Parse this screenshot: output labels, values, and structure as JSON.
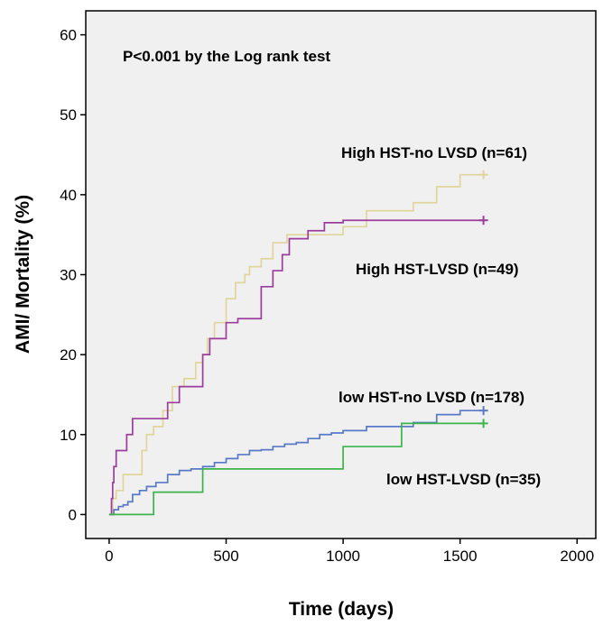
{
  "chart_data": {
    "type": "line",
    "step": true,
    "xlabel": "Time (days)",
    "ylabel": "AMI/ Mortality (%)",
    "xlim": [
      -100,
      2080
    ],
    "ylim": [
      -3,
      63
    ],
    "xticks": [
      0,
      500,
      1000,
      1500,
      2000
    ],
    "yticks": [
      0,
      10,
      20,
      30,
      40,
      50,
      60
    ],
    "grid": false,
    "plot_background": "#f0f0f0",
    "annotation": "P<0.001 by the Log rank test",
    "series": [
      {
        "name": "High HST-no LVSD (n=61)",
        "color": "#e0d59a",
        "x": [
          0,
          15,
          30,
          60,
          100,
          140,
          160,
          190,
          230,
          270,
          320,
          370,
          400,
          420,
          450,
          500,
          540,
          580,
          600,
          650,
          700,
          760,
          800,
          900,
          1000,
          1100,
          1300,
          1400,
          1500,
          1600
        ],
        "y": [
          0,
          2,
          3,
          5,
          5,
          8,
          10,
          11,
          13,
          16,
          17,
          19,
          20,
          22,
          24,
          27,
          29,
          30,
          31,
          32,
          34,
          35,
          35,
          35,
          36,
          38,
          39,
          41,
          42.5,
          42.5
        ]
      },
      {
        "name": "High HST-LVSD (n=49)",
        "color": "#9c3d9e",
        "x": [
          0,
          10,
          15,
          20,
          30,
          50,
          75,
          100,
          130,
          200,
          250,
          300,
          350,
          400,
          430,
          450,
          500,
          550,
          580,
          600,
          650,
          700,
          740,
          770,
          850,
          920,
          1000,
          1300,
          1600
        ],
        "y": [
          0,
          2,
          4,
          6,
          8,
          8,
          10,
          12,
          12,
          12,
          14,
          16,
          16,
          20,
          22,
          22,
          24,
          24.5,
          24.5,
          24.5,
          28.5,
          30.5,
          32.5,
          34.5,
          35.5,
          36.5,
          36.8,
          36.8,
          36.8
        ]
      },
      {
        "name": "low HST-no LVSD (n=178)",
        "color": "#5878c8",
        "x": [
          0,
          20,
          40,
          60,
          80,
          100,
          130,
          160,
          200,
          250,
          300,
          350,
          400,
          450,
          500,
          550,
          600,
          650,
          700,
          750,
          800,
          850,
          900,
          950,
          1000,
          1100,
          1200,
          1300,
          1400,
          1500,
          1600
        ],
        "y": [
          0,
          0.6,
          1,
          1.2,
          1.6,
          2.5,
          3,
          3.5,
          4,
          5,
          5.5,
          5.7,
          6,
          6.5,
          7,
          7.5,
          8,
          8.1,
          8.5,
          8.8,
          9,
          9.5,
          10,
          10.2,
          10.5,
          11,
          11,
          11.5,
          12.5,
          13,
          13
        ]
      },
      {
        "name": "low HST-LVSD (n=35)",
        "color": "#3cb44b",
        "x": [
          0,
          190,
          400,
          1000,
          1250,
          1600
        ],
        "y": [
          0,
          2.8,
          5.7,
          8.5,
          11.4,
          11.4
        ]
      }
    ]
  }
}
